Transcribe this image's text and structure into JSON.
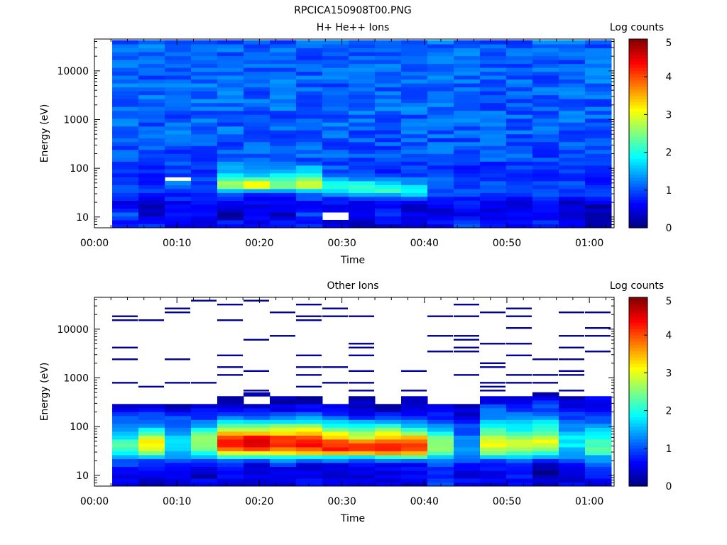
{
  "figure_title": "RPCICA150908T00.PNG",
  "chart_data": [
    {
      "type": "heatmap",
      "title": "H+ He++ Ions",
      "xlabel": "Time",
      "ylabel": "Energy (eV)",
      "xlim": [
        "00:00",
        "01:03"
      ],
      "ylim": [
        6,
        45000
      ],
      "y_scale": "log",
      "x_ticks": [
        "00:00",
        "00:10",
        "00:20",
        "00:30",
        "00:40",
        "00:50",
        "01:00"
      ],
      "y_ticks": [
        "10",
        "100",
        "1000",
        "10000"
      ],
      "colorbar": {
        "label": "Log counts",
        "range": [
          0,
          5
        ],
        "ticks": [
          "0",
          "1",
          "2",
          "3",
          "4",
          "5"
        ]
      },
      "time_columns": [
        "00:02",
        "00:06",
        "00:10",
        "00:13",
        "00:16",
        "00:19",
        "00:22",
        "00:26",
        "00:29",
        "00:32",
        "00:35",
        "00:38",
        "00:42",
        "00:45",
        "00:48",
        "00:51",
        "00:55",
        "00:58",
        "01:01"
      ],
      "energy_profile": [
        {
          "e": 7.5,
          "v": [
            0.7,
            0.9,
            0.6,
            0.6,
            0.8,
            0.6,
            0.7,
            0.8,
            0.5,
            0.3,
            0.5,
            0.6,
            0.6,
            1.0,
            0.9,
            0.7,
            0.8,
            0.6,
            0.3
          ]
        },
        {
          "e": 11,
          "v": [
            1.0,
            0.3,
            0.6,
            0.5,
            0.2,
            0.5,
            0.4,
            0.9,
            null,
            0.4,
            0.8,
            0.5,
            0.5,
            0.6,
            0.5,
            0.7,
            0.6,
            0.5,
            0.4
          ]
        },
        {
          "e": 16,
          "v": [
            0.5,
            0.3,
            0.6,
            0.6,
            0.5,
            0.4,
            0.4,
            0.6,
            0.6,
            0.6,
            0.6,
            0.4,
            0.5,
            0.6,
            0.5,
            0.4,
            0.6,
            0.5,
            0.2
          ]
        },
        {
          "e": 22,
          "v": [
            0.6,
            0.5,
            0.7,
            0.6,
            0.7,
            0.6,
            0.6,
            0.8,
            0.7,
            0.5,
            0.6,
            0.6,
            0.6,
            0.7,
            0.6,
            0.6,
            0.7,
            0.4,
            0.6
          ]
        },
        {
          "e": 32,
          "v": [
            0.9,
            0.8,
            0.9,
            0.9,
            1.1,
            1.0,
            1.0,
            1.2,
            1.7,
            1.8,
            2.0,
            1.9,
            1.1,
            1.0,
            1.0,
            0.9,
            1.0,
            0.9,
            0.9
          ]
        },
        {
          "e": 45,
          "v": [
            1.0,
            0.9,
            1.2,
            1.0,
            3.0,
            3.4,
            2.6,
            3.0,
            2.2,
            2.0,
            2.1,
            1.6,
            1.2,
            1.0,
            1.0,
            1.0,
            1.1,
            1.0,
            0.9
          ]
        },
        {
          "e": 60,
          "v": [
            0.8,
            0.8,
            null,
            0.9,
            2.2,
            2.4,
            2.2,
            2.4,
            1.6,
            1.4,
            1.4,
            1.2,
            1.0,
            0.9,
            0.9,
            0.9,
            0.9,
            0.8,
            0.8
          ]
        },
        {
          "e": 80,
          "v": [
            0.9,
            0.8,
            0.9,
            0.9,
            1.6,
            1.3,
            1.5,
            1.9,
            1.1,
            0.9,
            0.8,
            0.9,
            0.8,
            0.7,
            0.8,
            0.8,
            0.9,
            0.9,
            0.9
          ]
        },
        {
          "e": 150,
          "v": [
            1.0,
            1.0,
            1.0,
            1.0,
            1.0,
            1.1,
            1.0,
            1.1,
            1.0,
            1.0,
            1.0,
            1.0,
            1.0,
            1.0,
            1.0,
            1.0,
            1.0,
            1.0,
            1.0
          ]
        },
        {
          "e": 700,
          "v": [
            1.1,
            1.1,
            1.1,
            1.1,
            1.1,
            1.1,
            1.1,
            1.1,
            1.1,
            1.1,
            1.1,
            1.1,
            1.1,
            1.1,
            1.1,
            1.1,
            1.1,
            1.1,
            1.1
          ]
        },
        {
          "e": 5000,
          "v": [
            1.1,
            1.1,
            1.1,
            1.1,
            1.1,
            1.1,
            1.1,
            1.1,
            1.1,
            1.1,
            1.1,
            1.1,
            1.1,
            1.1,
            1.1,
            1.1,
            1.1,
            1.1,
            1.1
          ]
        },
        {
          "e": 40000,
          "v": [
            1.1,
            1.1,
            1.1,
            1.1,
            1.1,
            1.1,
            1.1,
            1.1,
            1.1,
            1.1,
            1.1,
            1.1,
            1.1,
            1.1,
            1.1,
            1.1,
            1.1,
            1.1,
            1.1
          ]
        }
      ]
    },
    {
      "type": "heatmap",
      "title": "Other Ions",
      "xlabel": "Time",
      "ylabel": "Energy (eV)",
      "xlim": [
        "00:00",
        "01:03"
      ],
      "ylim": [
        6,
        45000
      ],
      "y_scale": "log",
      "x_ticks": [
        "00:00",
        "00:10",
        "00:20",
        "00:30",
        "00:40",
        "00:50",
        "01:00"
      ],
      "y_ticks": [
        "10",
        "100",
        "1000",
        "10000"
      ],
      "colorbar": {
        "label": "Log counts",
        "range": [
          0,
          5
        ],
        "ticks": [
          "0",
          "1",
          "2",
          "3",
          "4",
          "5"
        ]
      },
      "time_columns": [
        "00:02",
        "00:06",
        "00:10",
        "00:13",
        "00:16",
        "00:19",
        "00:22",
        "00:26",
        "00:29",
        "00:32",
        "00:35",
        "00:38",
        "00:42",
        "00:45",
        "00:48",
        "00:51",
        "00:55",
        "00:58",
        "01:01"
      ],
      "energy_profile": [
        {
          "e": 7.5,
          "v": [
            0.6,
            0.2,
            0.5,
            0.6,
            0.5,
            0.5,
            0.5,
            0.6,
            0.6,
            0.5,
            0.6,
            0.5,
            1.0,
            0.6,
            0.5,
            0.7,
            0.3,
            0.5,
            0.6
          ]
        },
        {
          "e": 11,
          "v": [
            0.6,
            0.6,
            0.5,
            0.2,
            0.7,
            0.4,
            0.5,
            0.5,
            0.4,
            0.5,
            0.5,
            0.6,
            0.7,
            0.4,
            0.6,
            0.6,
            0.1,
            0.5,
            0.8
          ]
        },
        {
          "e": 16,
          "v": [
            0.8,
            0.7,
            0.7,
            0.7,
            0.6,
            0.3,
            0.7,
            0.5,
            0.5,
            0.6,
            0.6,
            0.6,
            0.9,
            0.7,
            0.7,
            0.8,
            0.2,
            0.6,
            0.9
          ]
        },
        {
          "e": 22,
          "v": [
            1.3,
            1.2,
            1.2,
            1.3,
            1.6,
            1.5,
            1.5,
            1.6,
            1.4,
            1.2,
            1.4,
            1.5,
            1.2,
            1.1,
            1.2,
            1.3,
            1.0,
            1.2,
            1.4
          ]
        },
        {
          "e": 32,
          "v": [
            2.0,
            2.9,
            1.5,
            2.4,
            3.5,
            3.7,
            3.8,
            3.9,
            4.1,
            4.2,
            4.3,
            4.1,
            2.6,
            1.6,
            2.8,
            2.5,
            2.6,
            1.6,
            2.2
          ]
        },
        {
          "e": 45,
          "v": [
            2.2,
            3.2,
            1.8,
            2.8,
            4.3,
            4.5,
            4.3,
            4.5,
            4.2,
            4.1,
            4.2,
            4.0,
            2.8,
            1.4,
            3.2,
            2.9,
            3.0,
            1.8,
            2.4
          ]
        },
        {
          "e": 60,
          "v": [
            1.8,
            2.8,
            1.6,
            2.6,
            4.2,
            4.4,
            4.0,
            4.2,
            3.4,
            3.0,
            3.2,
            3.6,
            2.6,
            1.2,
            2.8,
            2.7,
            2.8,
            1.7,
            2.1
          ]
        },
        {
          "e": 80,
          "v": [
            1.5,
            2.0,
            1.4,
            2.0,
            3.2,
            3.2,
            3.2,
            3.3,
            2.8,
            2.6,
            2.8,
            2.4,
            1.8,
            1.0,
            2.2,
            2.1,
            2.4,
            1.5,
            1.7
          ]
        },
        {
          "e": 110,
          "v": [
            1.2,
            1.4,
            1.2,
            1.4,
            2.2,
            2.4,
            2.2,
            2.3,
            2.0,
            1.7,
            1.8,
            1.6,
            1.2,
            0.9,
            1.8,
            1.6,
            1.9,
            1.2,
            1.3
          ]
        },
        {
          "e": 160,
          "v": [
            0.9,
            1.0,
            0.9,
            0.9,
            1.0,
            1.1,
            1.2,
            1.2,
            0.9,
            0.8,
            0.9,
            0.9,
            0.8,
            0.6,
            1.4,
            1.2,
            1.4,
            0.9,
            1.0
          ]
        },
        {
          "e": 240,
          "v": [
            0.5,
            0.6,
            0.4,
            0.5,
            0.6,
            0.5,
            0.5,
            0.7,
            0.4,
            0.3,
            0.3,
            0.3,
            0.5,
            0.3,
            1.0,
            0.8,
            1.0,
            0.6,
            0.7
          ]
        },
        {
          "e": 330,
          "v": [
            null,
            null,
            null,
            null,
            0.2,
            null,
            0.2,
            0.3,
            null,
            0.2,
            null,
            0.2,
            null,
            null,
            0.6,
            0.6,
            0.7,
            0.3,
            0.5
          ]
        },
        {
          "e": 500,
          "v": [
            null,
            null,
            null,
            null,
            null,
            0.2,
            null,
            null,
            null,
            null,
            null,
            null,
            null,
            null,
            null,
            null,
            0.3,
            null,
            null
          ]
        },
        {
          "e": 45000,
          "v": [
            null,
            null,
            null,
            null,
            null,
            null,
            null,
            null,
            null,
            null,
            null,
            null,
            null,
            null,
            null,
            null,
            null,
            null,
            null
          ]
        }
      ]
    }
  ]
}
